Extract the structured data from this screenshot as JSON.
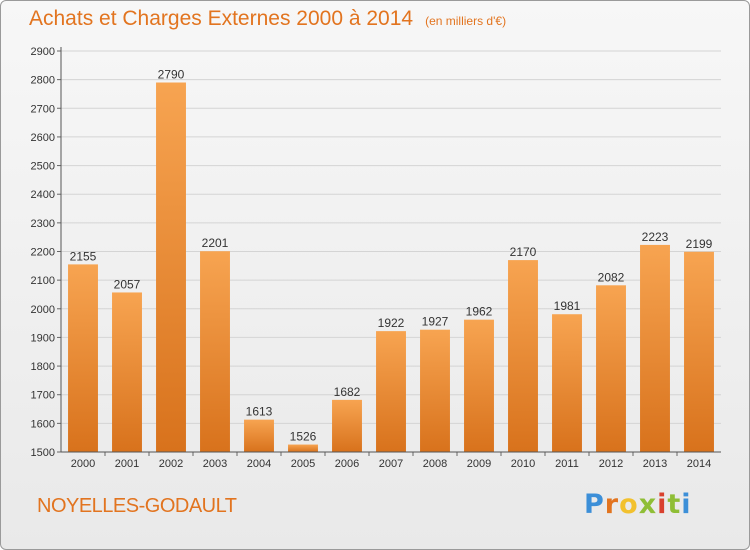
{
  "title": "Achats et Charges Externes 2000 à 2014",
  "subtitle": "(en milliers d'€)",
  "commune": "NOYELLES-GODAULT",
  "logo": {
    "letters": [
      "P",
      "r",
      "o",
      "x",
      "i",
      "t",
      "i"
    ],
    "colors": [
      "#3c8fd8",
      "#e2741f",
      "#f2c12e",
      "#8fbe36",
      "#d9412e",
      "#8fbe36",
      "#3c8fd8"
    ]
  },
  "colors": {
    "bar_light": "#f7a451",
    "bar_dark": "#d8721c",
    "title": "#e2741f"
  },
  "chart_data": {
    "type": "bar",
    "categories": [
      "2000",
      "2001",
      "2002",
      "2003",
      "2004",
      "2005",
      "2006",
      "2007",
      "2008",
      "2009",
      "2010",
      "2011",
      "2012",
      "2013",
      "2014"
    ],
    "values": [
      2155,
      2057,
      2790,
      2201,
      1613,
      1526,
      1682,
      1922,
      1927,
      1962,
      2170,
      1981,
      2082,
      2223,
      2199
    ],
    "ylim": [
      1500,
      2900
    ],
    "yticks": [
      1500,
      1600,
      1700,
      1800,
      1900,
      2000,
      2100,
      2200,
      2300,
      2400,
      2500,
      2600,
      2700,
      2800,
      2900
    ],
    "grid": true,
    "data_labels": true
  }
}
